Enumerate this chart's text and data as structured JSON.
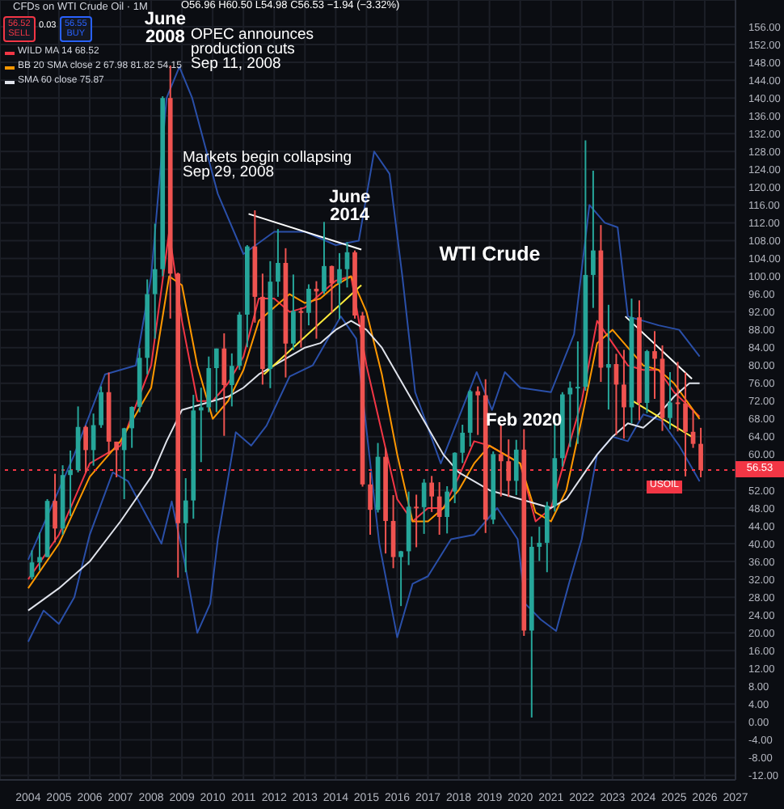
{
  "chart_data": {
    "type": "candlestick",
    "title": "CFDs on WTI Crude Oil · 1M",
    "annotations": [
      "OPEC announces\nproduction cuts\nSep 11, 2008",
      "Markets begin collapsing\nSep 29, 2008",
      "WTI Crude",
      "O56.96 H60.50 L54.98 C56.53 −1.94 (−3.32%)",
      "56.52\nSELL",
      "0.03",
      "56.55\nBUY",
      "USOIL",
      {
        "text": "June\n2008",
        "x": "2008-06-15",
        "y": 147
      },
      {
        "text": "June\n2014",
        "x": "2014-06-15",
        "y": 107
      },
      {
        "text": "Feb 2020",
        "x": "2020-02-15",
        "y": 61
      }
    ],
    "x": [
      "2004-02-15",
      "2004-05-15",
      "2004-08-15",
      "2004-11-15",
      "2005-02-15",
      "2005-05-15",
      "2005-08-15",
      "2005-11-15",
      "2006-02-15",
      "2006-05-15",
      "2006-08-15",
      "2006-11-15",
      "2007-02-15",
      "2007-05-15",
      "2007-08-15",
      "2007-11-15",
      "2008-02-15",
      "2008-05-15",
      "2008-08-15",
      "2008-11-15",
      "2009-02-15",
      "2009-05-15",
      "2009-08-15",
      "2009-11-15",
      "2010-02-15",
      "2010-05-15",
      "2010-08-15",
      "2010-11-15",
      "2011-02-15",
      "2011-05-15",
      "2011-08-15",
      "2011-11-15",
      "2012-02-15",
      "2012-05-15",
      "2012-08-15",
      "2012-11-15",
      "2013-02-15",
      "2013-05-15",
      "2013-08-15",
      "2013-11-15",
      "2014-02-15",
      "2014-05-15",
      "2014-08-15",
      "2014-11-15",
      "2015-02-15",
      "2015-05-15",
      "2015-08-15",
      "2015-11-15",
      "2016-02-15",
      "2016-05-15",
      "2016-08-15",
      "2016-11-15",
      "2017-02-15",
      "2017-05-15",
      "2017-08-15",
      "2017-11-15",
      "2018-02-15",
      "2018-05-15",
      "2018-08-15",
      "2018-11-15",
      "2019-02-15",
      "2019-05-15",
      "2019-08-15",
      "2019-11-15",
      "2020-02-15",
      "2020-05-15",
      "2020-08-15",
      "2020-11-15",
      "2021-02-15",
      "2021-05-15",
      "2021-08-15",
      "2021-11-15",
      "2022-02-15",
      "2022-05-15",
      "2022-08-15",
      "2022-11-15",
      "2023-02-15",
      "2023-05-15",
      "2023-08-15",
      "2023-11-15",
      "2024-02-15",
      "2024-05-15",
      "2024-08-15",
      "2024-11-15",
      "2025-02-15",
      "2025-05-15",
      "2025-08-15",
      "2025-11-15"
    ],
    "ohlc": [
      [
        32.5,
        38.5,
        32,
        35.8
      ],
      [
        35.8,
        42.5,
        34,
        37
      ],
      [
        37,
        50,
        37,
        49.6
      ],
      [
        49.6,
        55.7,
        40.3,
        43.4
      ],
      [
        43.4,
        57.6,
        42,
        55.4
      ],
      [
        55.4,
        60.9,
        46.2,
        56.5
      ],
      [
        56.5,
        70.8,
        56,
        66.2
      ],
      [
        66.2,
        66.5,
        56,
        61
      ],
      [
        61,
        69.2,
        57.5,
        66.6
      ],
      [
        66.6,
        75.3,
        66,
        74
      ],
      [
        74,
        78.4,
        60,
        62.9
      ],
      [
        62.9,
        62.9,
        54.9,
        61
      ],
      [
        61,
        66,
        50,
        65.9
      ],
      [
        65.9,
        70.8,
        61.5,
        70.7
      ],
      [
        70.7,
        83.9,
        69.5,
        81.7
      ],
      [
        81.7,
        99.3,
        78,
        96
      ],
      [
        96,
        111.8,
        86,
        101.6
      ],
      [
        101.6,
        140.4,
        100,
        140
      ],
      [
        140,
        147.3,
        90.5,
        100.6
      ],
      [
        100.6,
        100.8,
        32.4,
        44.6
      ],
      [
        44.6,
        54.7,
        33.6,
        49.7
      ],
      [
        49.7,
        73.4,
        45.6,
        69.9
      ],
      [
        69.9,
        75,
        58.3,
        70.6
      ],
      [
        70.6,
        82,
        69.5,
        79.4
      ],
      [
        79.4,
        83.8,
        69.5,
        83.8
      ],
      [
        83.8,
        87.2,
        64.2,
        75.6
      ],
      [
        75.6,
        82.7,
        70.8,
        79.9
      ],
      [
        79.9,
        92,
        79,
        91.4
      ],
      [
        91.4,
        107,
        84.1,
        106.7
      ],
      [
        106.7,
        114.8,
        89.6,
        95.4
      ],
      [
        95.4,
        100.6,
        75.7,
        79.2
      ],
      [
        79.2,
        103.4,
        74.9,
        98.8
      ],
      [
        98.8,
        110.6,
        95.4,
        103
      ],
      [
        103,
        106.3,
        77.3,
        84.9
      ],
      [
        84.9,
        100.4,
        83.5,
        92.2
      ],
      [
        92.2,
        93,
        84,
        91.8
      ],
      [
        91.8,
        98.2,
        89,
        97.2
      ],
      [
        97.2,
        98.9,
        86,
        96.6
      ],
      [
        96.6,
        112.2,
        96,
        102.3
      ],
      [
        102.3,
        102.4,
        91.8,
        98.4
      ],
      [
        98.4,
        105.2,
        90.4,
        101.6
      ],
      [
        101.6,
        107.7,
        97.5,
        105.4
      ],
      [
        105.4,
        105.8,
        90.5,
        91.2
      ],
      [
        91.2,
        92,
        52.8,
        53.3
      ],
      [
        53.3,
        56,
        42,
        47.6
      ],
      [
        47.6,
        62.6,
        47,
        59.5
      ],
      [
        59.5,
        61.5,
        37.8,
        45.1
      ],
      [
        45.1,
        50.9,
        34.5,
        37
      ],
      [
        37,
        38.4,
        26,
        38.3
      ],
      [
        38.3,
        51.7,
        35.2,
        48.3
      ],
      [
        48.3,
        51,
        39.2,
        48.2
      ],
      [
        48.2,
        54.5,
        42.2,
        53.7
      ],
      [
        53.7,
        55.2,
        47.1,
        50.6
      ],
      [
        50.6,
        53.8,
        42,
        46
      ],
      [
        46,
        52.9,
        42.3,
        51.7
      ],
      [
        51.7,
        60.5,
        49.1,
        60.4
      ],
      [
        60.4,
        66.7,
        58.1,
        64.9
      ],
      [
        64.9,
        74.5,
        61.8,
        74.2
      ],
      [
        74.2,
        75.3,
        64.4,
        73.3
      ],
      [
        73.3,
        76.9,
        42.4,
        45.4
      ],
      [
        45.4,
        60.7,
        44.4,
        60.1
      ],
      [
        60.1,
        66.6,
        50.6,
        58.5
      ],
      [
        58.5,
        63.4,
        50.5,
        54.1
      ],
      [
        54.1,
        63.3,
        50.9,
        61.1
      ],
      [
        61.1,
        65.7,
        19.3,
        20.5
      ],
      [
        20.5,
        41.6,
        1,
        39.3
      ],
      [
        39.3,
        43.8,
        36.1,
        40.2
      ],
      [
        40.2,
        49.4,
        33.6,
        48.5
      ],
      [
        48.5,
        67.9,
        47.2,
        59.2
      ],
      [
        59.2,
        74,
        57.3,
        73.5
      ],
      [
        73.5,
        76.4,
        61.7,
        75
      ],
      [
        75,
        85.4,
        62.4,
        75.2
      ],
      [
        75.2,
        130.5,
        74.3,
        100.3
      ],
      [
        100.3,
        123.7,
        92.9,
        105.8
      ],
      [
        105.8,
        111.5,
        76.3,
        79.5
      ],
      [
        79.5,
        93.6,
        70.1,
        80.3
      ],
      [
        80.3,
        82.6,
        64.4,
        75.7
      ],
      [
        75.7,
        83.5,
        63.6,
        70.6
      ],
      [
        70.6,
        95,
        67,
        90.8
      ],
      [
        90.8,
        94.6,
        67.7,
        71.6
      ],
      [
        71.6,
        83.5,
        69.3,
        83.2
      ],
      [
        83.2,
        87.7,
        72.5,
        81.5
      ],
      [
        81.5,
        84.5,
        65.3,
        68.2
      ],
      [
        68.2,
        78.5,
        65.7,
        71.7
      ],
      [
        71.7,
        80.8,
        65.2,
        71.5
      ],
      [
        71.5,
        78.4,
        55.1,
        65.1
      ],
      [
        65.1,
        70.1,
        61.5,
        62.4
      ],
      [
        62.4,
        66,
        54.9,
        56.53
      ]
    ],
    "series": [
      {
        "name": "WILD MA 14 68.52",
        "type": "line",
        "color": "#f23645",
        "x": [
          "2004-01",
          "2005-01",
          "2006-01",
          "2007-01",
          "2008-01",
          "2008-08",
          "2009-01",
          "2009-07",
          "2010-01",
          "2010-07",
          "2011-01",
          "2011-07",
          "2012-01",
          "2012-07",
          "2013-01",
          "2013-07",
          "2014-01",
          "2014-07",
          "2015-01",
          "2015-07",
          "2016-01",
          "2016-07",
          "2017-01",
          "2017-07",
          "2018-01",
          "2018-07",
          "2019-01",
          "2019-07",
          "2020-01",
          "2020-07",
          "2021-01",
          "2021-07",
          "2022-01",
          "2022-07",
          "2023-01",
          "2023-07",
          "2024-01",
          "2024-07",
          "2025-01",
          "2025-11"
        ],
        "values": [
          32,
          42,
          58,
          62,
          80,
          110,
          90,
          72,
          72,
          76,
          82,
          95,
          95,
          92,
          93,
          96,
          99,
          100,
          80,
          65,
          50,
          45,
          48,
          48,
          55,
          63,
          62,
          60,
          58,
          45,
          48,
          60,
          72,
          90,
          85,
          80,
          79,
          79,
          74,
          68.5
        ]
      },
      {
        "name": "BB 20 SMA close 2 67.98 81.82 54.15",
        "type": "line",
        "color": "#ff9800",
        "x": [
          "2004-01",
          "2005-01",
          "2006-01",
          "2007-01",
          "2008-01",
          "2008-08",
          "2009-01",
          "2009-07",
          "2010-01",
          "2010-07",
          "2011-01",
          "2011-07",
          "2012-01",
          "2012-07",
          "2013-01",
          "2013-07",
          "2014-01",
          "2014-07",
          "2015-01",
          "2015-07",
          "2016-01",
          "2016-07",
          "2017-01",
          "2017-07",
          "2018-01",
          "2018-07",
          "2019-01",
          "2019-07",
          "2020-01",
          "2020-07",
          "2021-01",
          "2021-07",
          "2022-01",
          "2022-07",
          "2023-01",
          "2023-07",
          "2024-01",
          "2024-07",
          "2025-01",
          "2025-11"
        ],
        "values": [
          30,
          40,
          55,
          63,
          75,
          100,
          98,
          80,
          68,
          72,
          79,
          90,
          93,
          96,
          94,
          95,
          98,
          100,
          92,
          78,
          60,
          45,
          45,
          48,
          52,
          58,
          62,
          60,
          58,
          47,
          45,
          52,
          68,
          85,
          88,
          84,
          80,
          79,
          76,
          68
        ]
      },
      {
        "type": "line",
        "color": "#2a4fa8",
        "x": [
          "2004-01",
          "2005-07",
          "2006-07",
          "2007-07",
          "2008-01",
          "2008-07",
          "2008-12",
          "2009-05",
          "2010-03",
          "2011-01",
          "2012-01",
          "2013-01",
          "2014-01",
          "2014-10",
          "2015-04",
          "2015-10",
          "2016-03",
          "2016-08",
          "2017-06",
          "2018-08",
          "2019-02",
          "2019-07",
          "2020-01",
          "2021-01",
          "2021-10",
          "2022-04",
          "2022-10",
          "2023-03",
          "2023-07",
          "2024-07",
          "2025-03",
          "2025-11"
        ],
        "values": [
          36.4,
          60,
          78,
          80,
          100,
          140,
          147,
          140,
          118.5,
          105,
          110,
          110,
          107,
          108,
          128,
          123,
          100,
          74,
          58,
          78.5,
          70,
          78.5,
          75,
          74,
          87,
          116,
          112,
          111,
          91,
          89,
          88,
          82
        ]
      },
      {
        "type": "line",
        "color": "#2a4fa8",
        "x": [
          "2004-01",
          "2004-07",
          "2005-01",
          "2005-07",
          "2006-01",
          "2006-10",
          "2007-04",
          "2008-05",
          "2008-09",
          "2009-02",
          "2009-07",
          "2009-12",
          "2010-03",
          "2010-10",
          "2011-04",
          "2011-10",
          "2012-07",
          "2013-04",
          "2014-03",
          "2014-09",
          "2015-06",
          "2016-01",
          "2016-07",
          "2017-01",
          "2017-10",
          "2018-07",
          "2019-04",
          "2019-12",
          "2020-03",
          "2020-09",
          "2021-03",
          "2021-08",
          "2022-01",
          "2022-07",
          "2023-01",
          "2023-07",
          "2024-01",
          "2024-08",
          "2025-03",
          "2025-11"
        ],
        "values": [
          18,
          25,
          22,
          28,
          42,
          56,
          54,
          40,
          49.5,
          36,
          20,
          26.5,
          41,
          65,
          62,
          66.5,
          77.5,
          80,
          91,
          86,
          40,
          19,
          31,
          32.7,
          41,
          42,
          48,
          41,
          26.5,
          23,
          20.4,
          31,
          41,
          60,
          64,
          63,
          69,
          67.7,
          62,
          54
        ]
      },
      {
        "name": "SMA 60 close 75.87",
        "type": "line",
        "color": "#e0e3eb",
        "x": [
          "2004-01",
          "2005-01",
          "2006-01",
          "2007-01",
          "2008-01",
          "2008-07",
          "2009-01",
          "2009-07",
          "2010-01",
          "2010-07",
          "2011-01",
          "2011-07",
          "2012-01",
          "2012-07",
          "2013-01",
          "2013-07",
          "2014-01",
          "2014-07",
          "2015-01",
          "2015-07",
          "2016-01",
          "2016-07",
          "2017-01",
          "2017-07",
          "2018-01",
          "2018-07",
          "2019-01",
          "2019-07",
          "2020-01",
          "2020-07",
          "2021-01",
          "2021-07",
          "2022-01",
          "2022-07",
          "2023-01",
          "2023-07",
          "2024-01",
          "2024-07",
          "2025-01",
          "2025-07",
          "2025-11"
        ],
        "values": [
          25,
          30,
          36,
          45,
          55,
          63,
          70,
          71,
          72,
          73,
          75,
          78,
          80,
          82,
          84,
          85,
          88,
          90,
          88,
          84,
          78,
          72,
          66,
          60,
          56,
          54,
          52,
          51,
          50,
          49,
          48,
          50,
          55,
          60,
          64,
          67,
          66,
          69,
          73,
          76,
          76
        ]
      },
      {
        "type": "line",
        "color": "#ffffff",
        "x": [
          "2011-03",
          "2014-11"
        ],
        "values": [
          114,
          106
        ]
      },
      {
        "type": "line",
        "color": "#ffeb3b",
        "x": [
          "2011-09",
          "2014-11"
        ],
        "values": [
          78,
          98
        ]
      },
      {
        "type": "line",
        "color": "#ffffff",
        "x": [
          "2023-06",
          "2025-08"
        ],
        "values": [
          91,
          77
        ]
      },
      {
        "type": "line",
        "color": "#ffeb3b",
        "x": [
          "2023-09",
          "2025-08"
        ],
        "values": [
          72,
          64
        ]
      }
    ],
    "xlim": [
      "2003-02",
      "2027-01"
    ],
    "xticks": [
      "2004",
      "2005",
      "2006",
      "2007",
      "2008",
      "2009",
      "2010",
      "2011",
      "2012",
      "2013",
      "2014",
      "2015",
      "2016",
      "2017",
      "2018",
      "2019",
      "2020",
      "2021",
      "2022",
      "2023",
      "2024",
      "2025",
      "2026",
      "2027"
    ],
    "ylim": [
      -13,
      162
    ],
    "yticks": [
      {
        "value": 156,
        "label": "156.00"
      },
      {
        "value": 152,
        "label": "152.00"
      },
      {
        "value": 148,
        "label": "148.00"
      },
      {
        "value": 144,
        "label": "144.00"
      },
      {
        "value": 140,
        "label": "140.00"
      },
      {
        "value": 136,
        "label": "136.00"
      },
      {
        "value": 132,
        "label": "132.00"
      },
      {
        "value": 128,
        "label": "128.00"
      },
      {
        "value": 124,
        "label": "124.00"
      },
      {
        "value": 120,
        "label": "120.00"
      },
      {
        "value": 116,
        "label": "116.00"
      },
      {
        "value": 112,
        "label": "112.00"
      },
      {
        "value": 108,
        "label": "108.00"
      },
      {
        "value": 104,
        "label": "104.00"
      },
      {
        "value": 100,
        "label": "100.00"
      },
      {
        "value": 96,
        "label": "96.00"
      },
      {
        "value": 92,
        "label": "92.00"
      },
      {
        "value": 88,
        "label": "88.00"
      },
      {
        "value": 84,
        "label": "84.00"
      },
      {
        "value": 80,
        "label": "80.00"
      },
      {
        "value": 76,
        "label": "76.00"
      },
      {
        "value": 72,
        "label": "72.00"
      },
      {
        "value": 68,
        "label": "68.00"
      },
      {
        "value": 64,
        "label": "64.00"
      },
      {
        "value": 60,
        "label": "60.00"
      },
      {
        "value": 52,
        "label": "52.00"
      },
      {
        "value": 48,
        "label": "48.00"
      },
      {
        "value": 44,
        "label": "44.00"
      },
      {
        "value": 40,
        "label": "40.00"
      },
      {
        "value": 36,
        "label": "36.00"
      },
      {
        "value": 32,
        "label": "32.00"
      },
      {
        "value": 28,
        "label": "28.00"
      },
      {
        "value": 24,
        "label": "24.00"
      },
      {
        "value": 20,
        "label": "20.00"
      },
      {
        "value": 16,
        "label": "16.00"
      },
      {
        "value": 12,
        "label": "12.00"
      },
      {
        "value": 8,
        "label": "8.00"
      },
      {
        "value": 4,
        "label": "4.00"
      },
      {
        "value": 0,
        "label": "0.00"
      },
      {
        "value": -4,
        "label": "-4.00"
      },
      {
        "value": -8,
        "label": "-8.00"
      },
      {
        "value": -12,
        "label": "-12.00"
      }
    ],
    "ref_lines": [
      {
        "axis": "y",
        "value": 56.53,
        "label": "56.53",
        "color": "#f23645",
        "line_style": "dotted"
      }
    ],
    "grid": true,
    "legend": "top left",
    "marker": "none",
    "line_style": "solid"
  }
}
